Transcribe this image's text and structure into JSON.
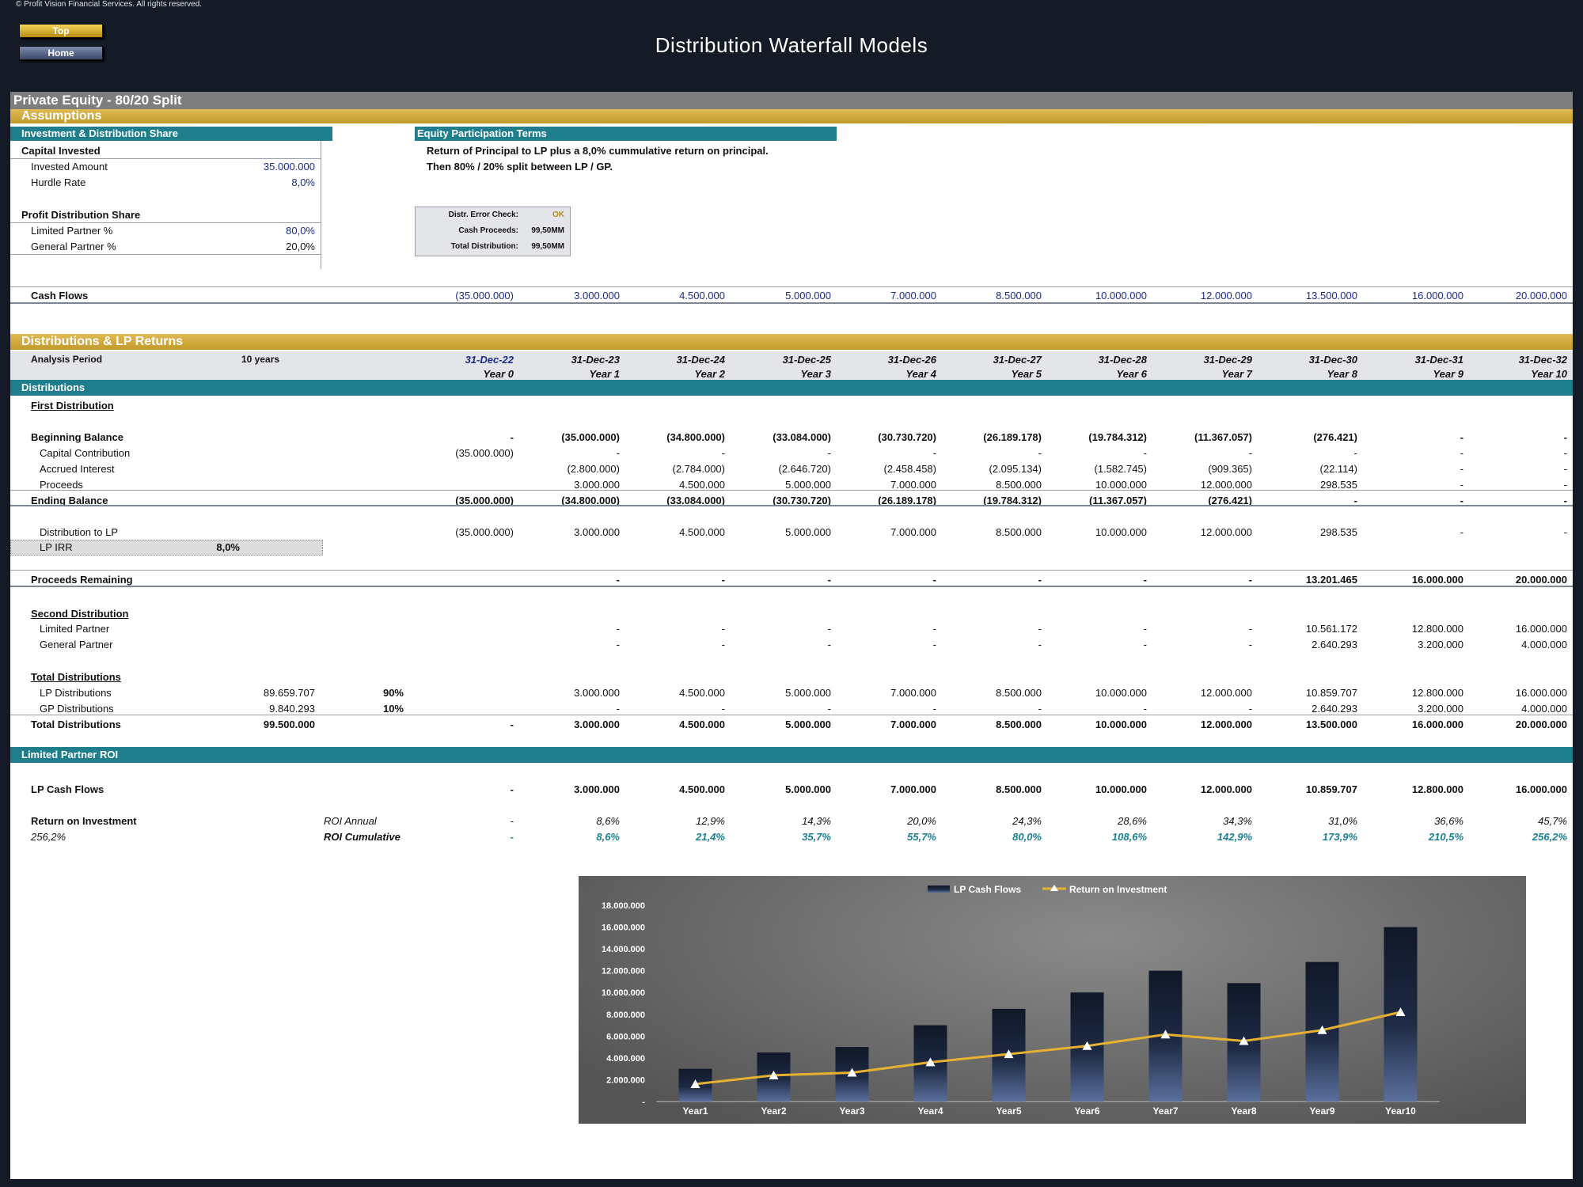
{
  "copyright": "© Profit Vision Financial Services. All rights reserved.",
  "nav": {
    "top_label": "Top",
    "home_label": "Home"
  },
  "title": "Distribution Waterfall Models",
  "sheet_title": "Private Equity - 80/20 Split",
  "assumptions": {
    "header": "Assumptions",
    "left_header": "Investment & Distribution Share",
    "capital_invested": "Capital Invested",
    "invested_amount_label": "Invested Amount",
    "invested_amount": "35.000.000",
    "hurdle_rate_label": "Hurdle Rate",
    "hurdle_rate": "8,0%",
    "profit_share": "Profit Distribution Share",
    "lp_pct_label": "Limited Partner %",
    "lp_pct": "80,0%",
    "gp_pct_label": "General Partner %",
    "gp_pct": "20,0%",
    "terms_header": "Equity Participation Terms",
    "terms_line1": "Return of Principal to LP plus a 8,0% cummulative return on principal.",
    "terms_line2": "Then 80% / 20% split between LP / GP.",
    "check": {
      "error_label": "Distr. Error Check:",
      "error_value": "OK",
      "proceeds_label": "Cash Proceeds:",
      "proceeds_value": "99,50MM",
      "total_label": "Total Distribution:",
      "total_value": "99,50MM"
    }
  },
  "cash_flows": {
    "label": "Cash Flows",
    "values": [
      "(35.000.000)",
      "3.000.000",
      "4.500.000",
      "5.000.000",
      "7.000.000",
      "8.500.000",
      "10.000.000",
      "12.000.000",
      "13.500.000",
      "16.000.000",
      "20.000.000"
    ]
  },
  "dist_section": {
    "header": "Distributions & LP Returns",
    "analysis_label": "Analysis Period",
    "analysis_value": "10 years",
    "dates": [
      "31-Dec-22",
      "31-Dec-23",
      "31-Dec-24",
      "31-Dec-25",
      "31-Dec-26",
      "31-Dec-27",
      "31-Dec-28",
      "31-Dec-29",
      "31-Dec-30",
      "31-Dec-31",
      "31-Dec-32"
    ],
    "years": [
      "Year 0",
      "Year 1",
      "Year 2",
      "Year 3",
      "Year 4",
      "Year 5",
      "Year 6",
      "Year 7",
      "Year 8",
      "Year 9",
      "Year 10"
    ],
    "distributions_header": "Distributions",
    "first_distribution": "First Distribution",
    "rows": {
      "beginning_balance": {
        "label": "Beginning Balance",
        "values": [
          "-",
          "(35.000.000)",
          "(34.800.000)",
          "(33.084.000)",
          "(30.730.720)",
          "(26.189.178)",
          "(19.784.312)",
          "(11.367.057)",
          "(276.421)",
          "-",
          "-"
        ]
      },
      "capital_contribution": {
        "label": "Capital Contribution",
        "values": [
          "(35.000.000)",
          "-",
          "-",
          "-",
          "-",
          "-",
          "-",
          "-",
          "-",
          "-",
          "-"
        ]
      },
      "accrued_interest": {
        "label": "Accrued Interest",
        "values": [
          "",
          "(2.800.000)",
          "(2.784.000)",
          "(2.646.720)",
          "(2.458.458)",
          "(2.095.134)",
          "(1.582.745)",
          "(909.365)",
          "(22.114)",
          "-",
          "-"
        ]
      },
      "proceeds": {
        "label": "Proceeds",
        "values": [
          "",
          "3.000.000",
          "4.500.000",
          "5.000.000",
          "7.000.000",
          "8.500.000",
          "10.000.000",
          "12.000.000",
          "298.535",
          "-",
          "-"
        ]
      },
      "ending_balance": {
        "label": "Ending Balance",
        "values": [
          "(35.000.000)",
          "(34.800.000)",
          "(33.084.000)",
          "(30.730.720)",
          "(26.189.178)",
          "(19.784.312)",
          "(11.367.057)",
          "(276.421)",
          "-",
          "-",
          "-"
        ]
      },
      "distribution_to_lp": {
        "label": "Distribution to LP",
        "values": [
          "(35.000.000)",
          "3.000.000",
          "4.500.000",
          "5.000.000",
          "7.000.000",
          "8.500.000",
          "10.000.000",
          "12.000.000",
          "298.535",
          "-",
          "-"
        ]
      },
      "proceeds_remaining": {
        "label": "Proceeds Remaining",
        "values": [
          "",
          "-",
          "-",
          "-",
          "-",
          "-",
          "-",
          "-",
          "13.201.465",
          "16.000.000",
          "20.000.000"
        ]
      },
      "second_lp": {
        "label": "Limited Partner",
        "values": [
          "",
          "-",
          "-",
          "-",
          "-",
          "-",
          "-",
          "-",
          "10.561.172",
          "12.800.000",
          "16.000.000"
        ]
      },
      "second_gp": {
        "label": "General Partner",
        "values": [
          "",
          "-",
          "-",
          "-",
          "-",
          "-",
          "-",
          "-",
          "2.640.293",
          "3.200.000",
          "4.000.000"
        ]
      },
      "lp_distributions": {
        "label": "LP Distributions",
        "total": "89.659.707",
        "pct": "90%",
        "values": [
          "",
          "3.000.000",
          "4.500.000",
          "5.000.000",
          "7.000.000",
          "8.500.000",
          "10.000.000",
          "12.000.000",
          "10.859.707",
          "12.800.000",
          "16.000.000"
        ]
      },
      "gp_distributions": {
        "label": "GP Distributions",
        "total": "9.840.293",
        "pct": "10%",
        "values": [
          "",
          "-",
          "-",
          "-",
          "-",
          "-",
          "-",
          "-",
          "2.640.293",
          "3.200.000",
          "4.000.000"
        ]
      },
      "total_distributions": {
        "label": "Total Distributions",
        "total": "99.500.000",
        "values": [
          "-",
          "3.000.000",
          "4.500.000",
          "5.000.000",
          "7.000.000",
          "8.500.000",
          "10.000.000",
          "12.000.000",
          "13.500.000",
          "16.000.000",
          "20.000.000"
        ]
      }
    },
    "lp_irr_label": "LP IRR",
    "lp_irr_value": "8,0%",
    "second_distribution": "Second Distribution",
    "total_distributions_header": "Total Distributions"
  },
  "roi_section": {
    "header": "Limited Partner ROI",
    "lp_cash_flows": {
      "label": "LP Cash Flows",
      "values": [
        "-",
        "3.000.000",
        "4.500.000",
        "5.000.000",
        "7.000.000",
        "8.500.000",
        "10.000.000",
        "12.000.000",
        "10.859.707",
        "12.800.000",
        "16.000.000"
      ]
    },
    "roi_label": "Return on Investment",
    "roi_annual_label": "ROI Annual",
    "roi_annual": [
      "-",
      "8,6%",
      "12,9%",
      "14,3%",
      "20,0%",
      "24,3%",
      "28,6%",
      "34,3%",
      "31,0%",
      "36,6%",
      "45,7%"
    ],
    "roi_total": "256,2%",
    "roi_cum_label": "ROI Cumulative",
    "roi_cumulative": [
      "-",
      "8,6%",
      "21,4%",
      "35,7%",
      "55,7%",
      "80,0%",
      "108,6%",
      "142,9%",
      "173,9%",
      "210,5%",
      "256,2%"
    ]
  },
  "colors": {
    "teal": "#1f7e8c",
    "gold": "#c9a33a",
    "navy_text": "#1d2b8a",
    "background": "#141a26"
  },
  "chart_data": {
    "type": "bar",
    "categories": [
      "Year1",
      "Year2",
      "Year3",
      "Year4",
      "Year5",
      "Year6",
      "Year7",
      "Year8",
      "Year9",
      "Year10"
    ],
    "series": [
      {
        "name": "LP Cash Flows",
        "type": "bar",
        "values": [
          3000000,
          4500000,
          5000000,
          7000000,
          8500000,
          10000000,
          12000000,
          10859707,
          12800000,
          16000000
        ]
      },
      {
        "name": "Return on Investment",
        "type": "line",
        "values": [
          1600000,
          2400000,
          2650000,
          3600000,
          4350000,
          5100000,
          6150000,
          5550000,
          6550000,
          8200000
        ]
      }
    ],
    "yticks": [
      "-",
      "2.000.000",
      "4.000.000",
      "6.000.000",
      "8.000.000",
      "10.000.000",
      "12.000.000",
      "14.000.000",
      "16.000.000",
      "18.000.000"
    ],
    "ylim": [
      0,
      18000000
    ],
    "legend": "top-center",
    "grid": false
  }
}
